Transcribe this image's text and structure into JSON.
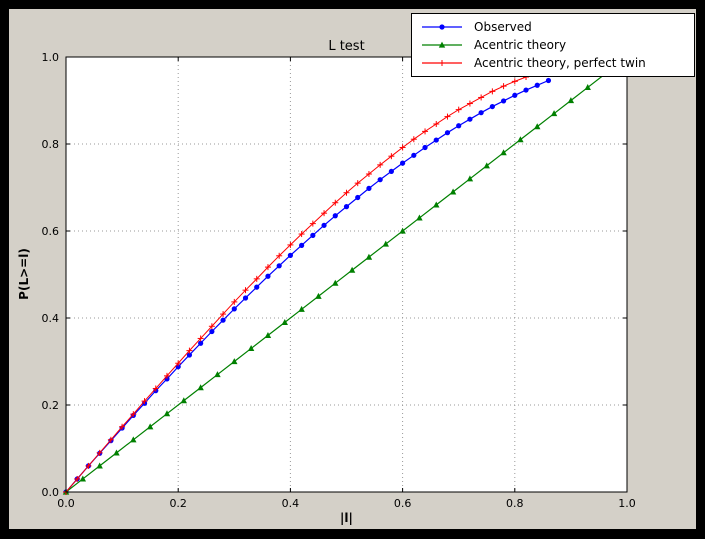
{
  "figure": {
    "outer_background": "#000000",
    "figure_background": "#d4d0c8",
    "axes_background": "#ffffff",
    "axes_border_color": "#000000"
  },
  "chart_data": {
    "type": "line",
    "title": "L test",
    "xlabel": "|l|",
    "ylabel": "P(L>=l)",
    "xlim": [
      0,
      1
    ],
    "ylim": [
      0,
      1
    ],
    "xticks": [
      0.0,
      0.2,
      0.4,
      0.6,
      0.8,
      1.0
    ],
    "xtick_labels": [
      "0.0",
      "0.2",
      "0.4",
      "0.6",
      "0.8",
      "1.0"
    ],
    "yticks": [
      0.0,
      0.2,
      0.4,
      0.6,
      0.8,
      1.0
    ],
    "ytick_labels": [
      "0.0",
      "0.2",
      "0.4",
      "0.6",
      "0.8",
      "1.0"
    ],
    "grid": {
      "visible": true,
      "style": "dotted",
      "color": "#999999"
    },
    "legend": {
      "position": "upper-right",
      "entries": [
        "Observed",
        "Acentric theory",
        "Acentric theory, perfect twin"
      ]
    },
    "series": [
      {
        "name": "Observed",
        "color": "#0000ff",
        "marker": "circle",
        "x": [
          0.0,
          0.02,
          0.04,
          0.06,
          0.08,
          0.1,
          0.12,
          0.14,
          0.16,
          0.18,
          0.2,
          0.22,
          0.24,
          0.26,
          0.28,
          0.3,
          0.32,
          0.34,
          0.36,
          0.38,
          0.4,
          0.42,
          0.44,
          0.46,
          0.48,
          0.5,
          0.52,
          0.54,
          0.56,
          0.58,
          0.6,
          0.62,
          0.64,
          0.66,
          0.68,
          0.7,
          0.72,
          0.74,
          0.76,
          0.78,
          0.8,
          0.82,
          0.84,
          0.86
        ],
        "y": [
          0.0,
          0.03,
          0.06,
          0.089,
          0.118,
          0.147,
          0.176,
          0.204,
          0.233,
          0.26,
          0.288,
          0.315,
          0.342,
          0.369,
          0.395,
          0.421,
          0.446,
          0.471,
          0.496,
          0.52,
          0.544,
          0.567,
          0.59,
          0.613,
          0.635,
          0.656,
          0.677,
          0.698,
          0.718,
          0.737,
          0.756,
          0.774,
          0.792,
          0.809,
          0.826,
          0.842,
          0.857,
          0.872,
          0.886,
          0.899,
          0.912,
          0.924,
          0.935,
          0.946
        ]
      },
      {
        "name": "Acentric theory",
        "color": "#008000",
        "marker": "triangle",
        "x": [
          0.0,
          0.03,
          0.06,
          0.09,
          0.12,
          0.15,
          0.18,
          0.21,
          0.24,
          0.27,
          0.3,
          0.33,
          0.36,
          0.39,
          0.42,
          0.45,
          0.48,
          0.51,
          0.54,
          0.57,
          0.6,
          0.63,
          0.66,
          0.69,
          0.72,
          0.75,
          0.78,
          0.81,
          0.84,
          0.87,
          0.9,
          0.93,
          0.96
        ],
        "y": [
          0.0,
          0.03,
          0.06,
          0.09,
          0.12,
          0.15,
          0.18,
          0.21,
          0.24,
          0.27,
          0.3,
          0.33,
          0.36,
          0.39,
          0.42,
          0.45,
          0.48,
          0.51,
          0.54,
          0.57,
          0.6,
          0.63,
          0.66,
          0.69,
          0.72,
          0.75,
          0.78,
          0.81,
          0.84,
          0.87,
          0.9,
          0.93,
          0.96
        ]
      },
      {
        "name": "Acentric theory, perfect twin",
        "color": "#ff0000",
        "marker": "plus",
        "x": [
          0.0,
          0.02,
          0.04,
          0.06,
          0.08,
          0.1,
          0.12,
          0.14,
          0.16,
          0.18,
          0.2,
          0.22,
          0.24,
          0.26,
          0.28,
          0.3,
          0.32,
          0.34,
          0.36,
          0.38,
          0.4,
          0.42,
          0.44,
          0.46,
          0.48,
          0.5,
          0.52,
          0.54,
          0.56,
          0.58,
          0.6,
          0.62,
          0.64,
          0.66,
          0.68,
          0.7,
          0.72,
          0.74,
          0.76,
          0.78,
          0.8,
          0.82,
          0.84
        ],
        "y": [
          0.0,
          0.03,
          0.06,
          0.09,
          0.12,
          0.15,
          0.179,
          0.209,
          0.238,
          0.267,
          0.296,
          0.325,
          0.353,
          0.381,
          0.409,
          0.437,
          0.464,
          0.49,
          0.517,
          0.543,
          0.568,
          0.593,
          0.617,
          0.641,
          0.665,
          0.688,
          0.71,
          0.731,
          0.752,
          0.772,
          0.792,
          0.811,
          0.829,
          0.846,
          0.863,
          0.879,
          0.893,
          0.907,
          0.921,
          0.933,
          0.944,
          0.954,
          0.964
        ]
      }
    ]
  }
}
